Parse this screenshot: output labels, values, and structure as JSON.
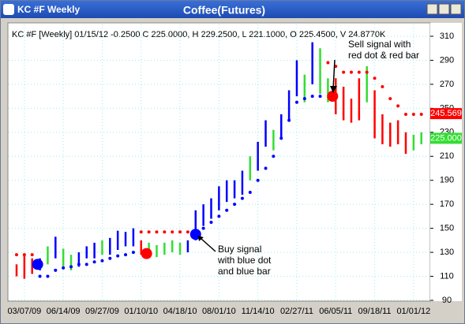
{
  "chart_data": {
    "type": "ohlc",
    "window_title": "KC #F Weekly",
    "title": "Coffee(Futures)",
    "info": "KC #F [Weekly] 01/15/12  -0.2500 C 225.0000, H 229.2500, L 221.1000, O 225.4500, V 24.8770K",
    "categories": [
      null,
      "03/07/09",
      null,
      null,
      null,
      null,
      "06/14/09",
      null,
      null,
      null,
      null,
      "09/27/09",
      null,
      null,
      null,
      null,
      "01/10/10",
      null,
      null,
      null,
      null,
      "04/18/10",
      null,
      null,
      null,
      null,
      "08/01/10",
      null,
      null,
      null,
      null,
      "11/14/10",
      null,
      null,
      null,
      null,
      "02/27/11",
      null,
      null,
      null,
      null,
      "06/05/11",
      null,
      null,
      null,
      null,
      "09/18/11",
      null,
      null,
      null,
      null,
      "01/01/12",
      null
    ],
    "high": [
      120,
      128,
      125,
      125,
      135,
      143,
      133,
      128,
      130,
      135,
      138,
      140,
      142,
      148,
      147,
      150,
      140,
      138,
      136,
      138,
      140,
      138,
      140,
      165,
      170,
      175,
      185,
      190,
      190,
      198,
      210,
      222,
      240,
      232,
      245,
      265,
      290,
      278,
      305,
      300,
      275,
      275,
      268,
      258,
      275,
      285,
      265,
      245,
      238,
      240,
      230,
      228,
      230
    ],
    "low": [
      110,
      108,
      112,
      115,
      120,
      125,
      118,
      115,
      118,
      125,
      125,
      128,
      128,
      132,
      135,
      135,
      128,
      126,
      126,
      128,
      130,
      128,
      130,
      140,
      152,
      158,
      165,
      172,
      175,
      178,
      190,
      198,
      218,
      215,
      225,
      240,
      260,
      255,
      270,
      262,
      255,
      245,
      240,
      238,
      240,
      255,
      225,
      220,
      218,
      220,
      212,
      215,
      220
    ],
    "bar_colors": [
      "#ff0000",
      "#ff0000",
      "#ff0000",
      "#0000ff",
      "#33dd33",
      "#0000ff",
      "#33dd33",
      "#33dd33",
      "#0000ff",
      "#0000ff",
      "#0000ff",
      "#33dd33",
      "#0000ff",
      "#0000ff",
      "#0000ff",
      "#0000ff",
      "#ff0000",
      "#33dd33",
      "#33dd33",
      "#33dd33",
      "#33dd33",
      "#33dd33",
      "#0000ff",
      "#0000ff",
      "#0000ff",
      "#0000ff",
      "#0000ff",
      "#0000ff",
      "#0000ff",
      "#0000ff",
      "#33dd33",
      "#0000ff",
      "#0000ff",
      "#33dd33",
      "#0000ff",
      "#0000ff",
      "#0000ff",
      "#33dd33",
      "#0000ff",
      "#33dd33",
      "#33dd33",
      "#ff0000",
      "#ff0000",
      "#ff0000",
      "#ff0000",
      "#33dd33",
      "#ff0000",
      "#ff0000",
      "#ff0000",
      "#ff0000",
      "#ff0000",
      "#33dd33",
      "#33dd33"
    ],
    "stop": {
      "values": [
        128,
        128,
        128,
        110,
        110,
        115,
        117,
        118,
        120,
        120,
        122,
        123,
        125,
        127,
        128,
        130,
        147,
        147,
        147,
        147,
        147,
        147,
        147,
        145,
        150,
        155,
        160,
        165,
        170,
        175,
        180,
        190,
        200,
        210,
        225,
        240,
        255,
        258,
        260,
        260,
        288,
        285,
        280,
        280,
        280,
        280,
        275,
        268,
        258,
        252,
        245,
        245,
        245
      ],
      "colors": [
        "#ff0000",
        "#ff0000",
        "#ff0000",
        "#0000ff",
        "#0000ff",
        "#0000ff",
        "#0000ff",
        "#0000ff",
        "#0000ff",
        "#0000ff",
        "#0000ff",
        "#0000ff",
        "#0000ff",
        "#0000ff",
        "#0000ff",
        "#0000ff",
        "#ff0000",
        "#ff0000",
        "#ff0000",
        "#ff0000",
        "#ff0000",
        "#ff0000",
        "#ff0000",
        "#0000ff",
        "#0000ff",
        "#0000ff",
        "#0000ff",
        "#0000ff",
        "#0000ff",
        "#0000ff",
        "#0000ff",
        "#0000ff",
        "#0000ff",
        "#0000ff",
        "#0000ff",
        "#0000ff",
        "#0000ff",
        "#0000ff",
        "#0000ff",
        "#0000ff",
        "#ff0000",
        "#ff0000",
        "#ff0000",
        "#ff0000",
        "#ff0000",
        "#ff0000",
        "#ff0000",
        "#ff0000",
        "#ff0000",
        "#ff0000",
        "#ff0000",
        "#ff0000",
        "#ff0000"
      ]
    },
    "signals": [
      {
        "index": 2.7,
        "value": 120,
        "color": "#0000ff"
      },
      {
        "index": 16.7,
        "value": 129,
        "color": "#ff0000"
      },
      {
        "index": 23,
        "value": 145,
        "color": "#0000ff"
      },
      {
        "index": 40.6,
        "value": 260,
        "color": "#ff0000"
      }
    ],
    "annotations": [
      {
        "lines": [
          "Sell signal with",
          "red dot & red bar"
        ]
      },
      {
        "lines": [
          "Buy signal",
          "with blue dot",
          "and blue bar"
        ]
      }
    ],
    "price_labels": [
      {
        "value": 245.569,
        "label": "245.569",
        "color": "#ff0000"
      },
      {
        "value": 225,
        "label": "225.000",
        "color": "#33dd33"
      }
    ],
    "ylim": [
      90,
      310
    ],
    "yticks": [
      90,
      110,
      130,
      150,
      170,
      190,
      210,
      230,
      250,
      270,
      290,
      310
    ],
    "grid": true
  }
}
